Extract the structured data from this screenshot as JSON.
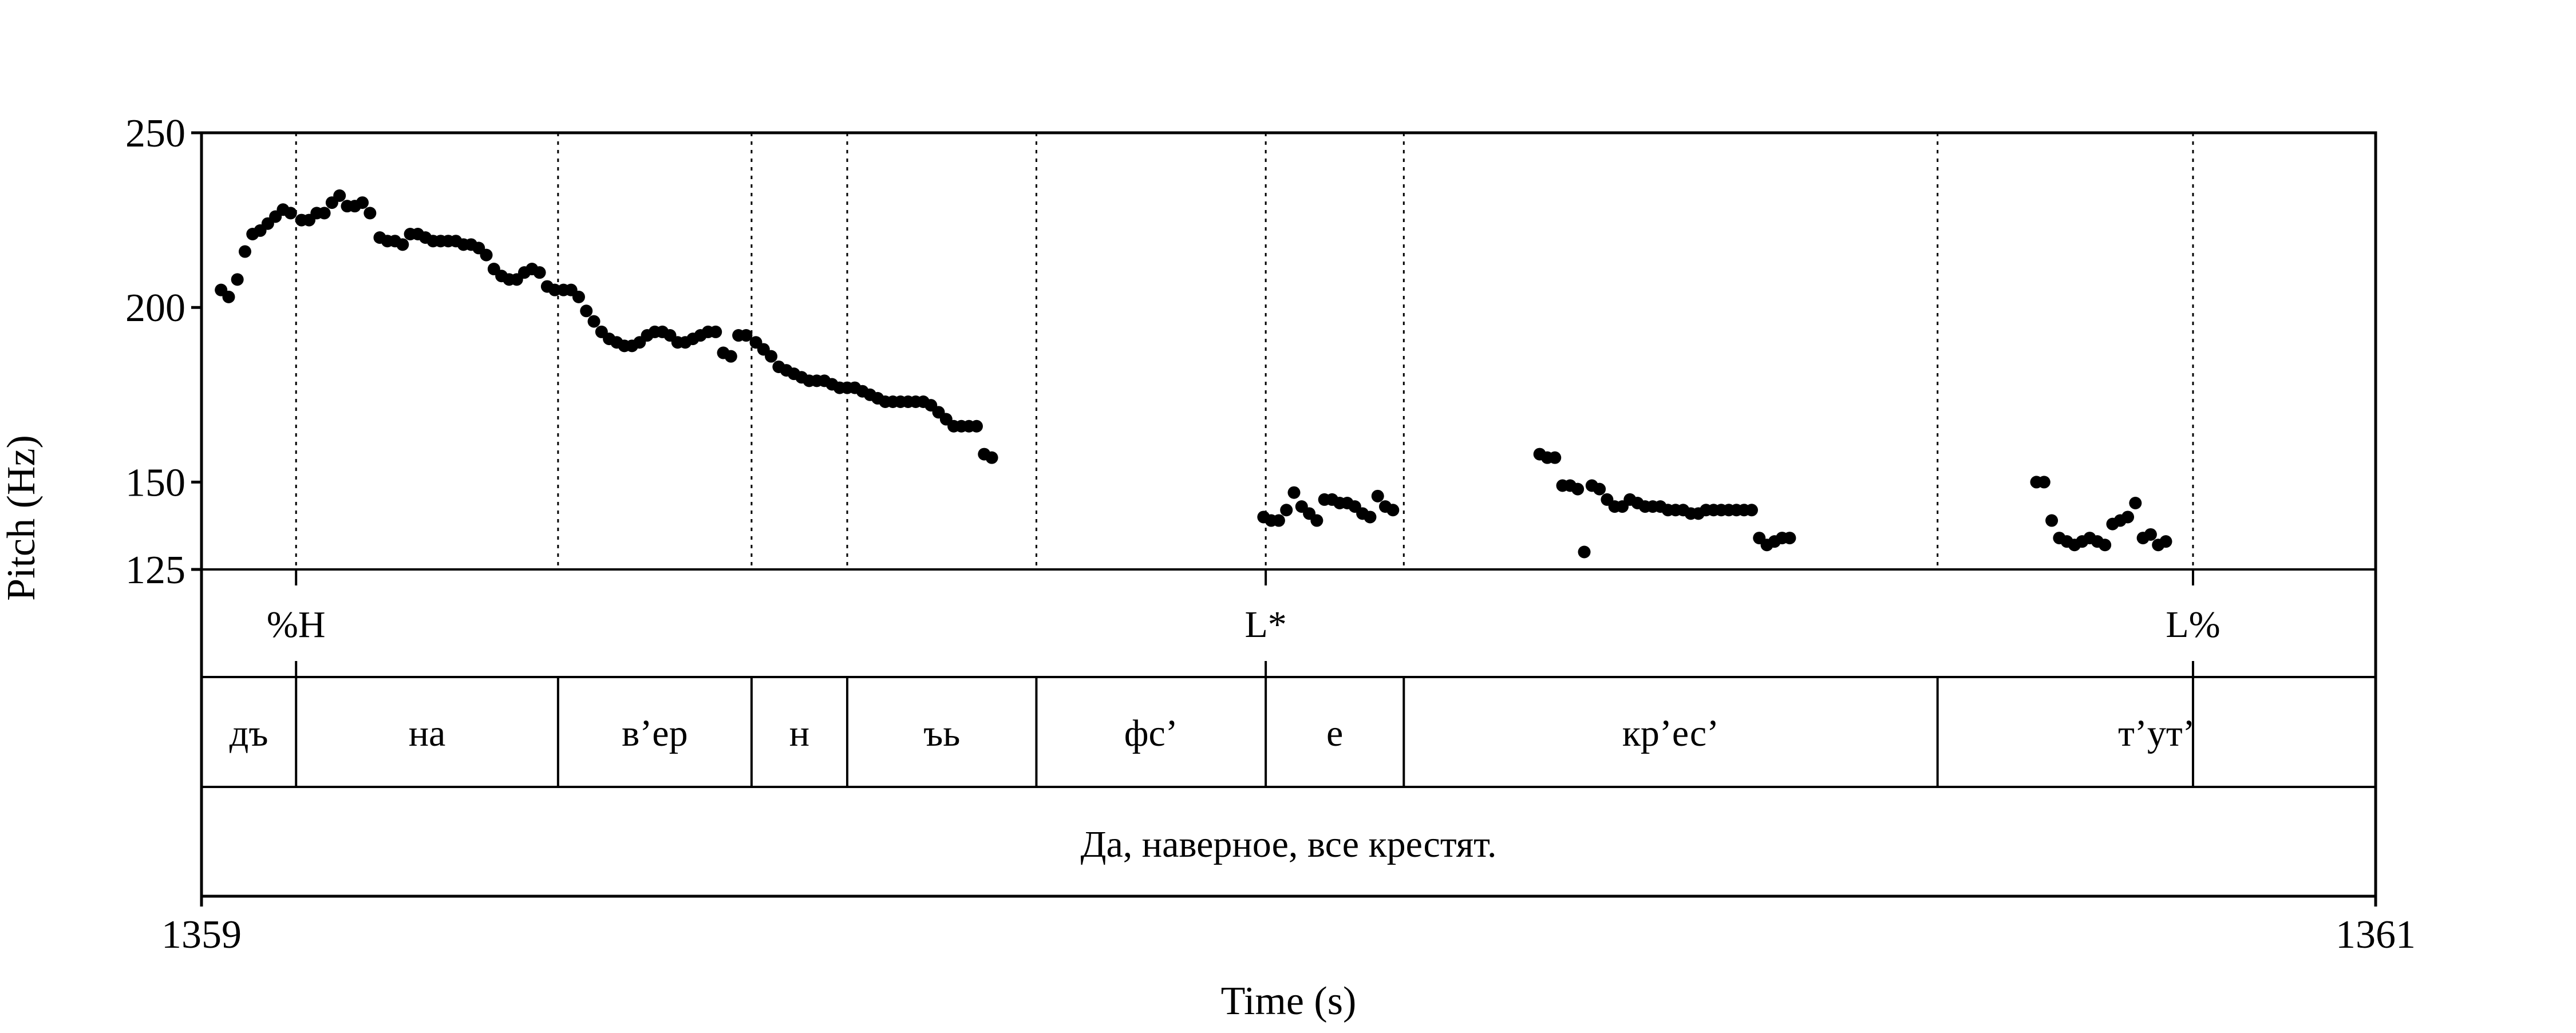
{
  "chart_data": {
    "type": "scatter",
    "xlabel": "Time (s)",
    "ylabel": "Pitch (Hz)",
    "xlim": [
      1359,
      1361
    ],
    "ylim": [
      125,
      250
    ],
    "x_ticks": [
      {
        "value": 1359,
        "label": "1359"
      },
      {
        "value": 1361,
        "label": "1361"
      }
    ],
    "y_ticks": [
      {
        "value": 250,
        "label": "250"
      },
      {
        "value": 200,
        "label": "200"
      },
      {
        "value": 150,
        "label": "150"
      },
      {
        "value": 125,
        "label": "125"
      }
    ],
    "grid": false,
    "legend": "none",
    "marker_color": "#000000",
    "boundaries_s": [
      1359.087,
      1359.328,
      1359.506,
      1359.594,
      1359.768,
      1359.979,
      1360.106,
      1360.597,
      1360.832
    ],
    "tones": [
      {
        "label": "%H",
        "time": 1359.087
      },
      {
        "label": "L*",
        "time": 1359.979
      },
      {
        "label": "L%",
        "time": 1360.832
      }
    ],
    "syllables": [
      {
        "label": "дъ",
        "start": 1359.0,
        "end": 1359.087
      },
      {
        "label": "на",
        "start": 1359.087,
        "end": 1359.328
      },
      {
        "label": "в’ер",
        "start": 1359.328,
        "end": 1359.506
      },
      {
        "label": "н",
        "start": 1359.506,
        "end": 1359.594
      },
      {
        "label": "ъь",
        "start": 1359.594,
        "end": 1359.768
      },
      {
        "label": "фс’",
        "start": 1359.768,
        "end": 1359.979
      },
      {
        "label": "е",
        "start": 1359.979,
        "end": 1360.106
      },
      {
        "label": "кр’ес’",
        "start": 1360.106,
        "end": 1360.597
      },
      {
        "label": "т’ут’",
        "start": 1360.597,
        "end": 1361.0
      }
    ],
    "sentence": "Да, наверное, все крестят.",
    "pitch_points": [
      {
        "x": 1359.018,
        "y": 205
      },
      {
        "x": 1359.025,
        "y": 203
      },
      {
        "x": 1359.033,
        "y": 208
      },
      {
        "x": 1359.04,
        "y": 216
      },
      {
        "x": 1359.047,
        "y": 221
      },
      {
        "x": 1359.054,
        "y": 222
      },
      {
        "x": 1359.061,
        "y": 224
      },
      {
        "x": 1359.068,
        "y": 226
      },
      {
        "x": 1359.075,
        "y": 228
      },
      {
        "x": 1359.082,
        "y": 227
      },
      {
        "x": 1359.092,
        "y": 225
      },
      {
        "x": 1359.099,
        "y": 225
      },
      {
        "x": 1359.106,
        "y": 227
      },
      {
        "x": 1359.113,
        "y": 227
      },
      {
        "x": 1359.12,
        "y": 230
      },
      {
        "x": 1359.127,
        "y": 232
      },
      {
        "x": 1359.134,
        "y": 229
      },
      {
        "x": 1359.141,
        "y": 229
      },
      {
        "x": 1359.148,
        "y": 230
      },
      {
        "x": 1359.155,
        "y": 227
      },
      {
        "x": 1359.164,
        "y": 220
      },
      {
        "x": 1359.171,
        "y": 219
      },
      {
        "x": 1359.178,
        "y": 219
      },
      {
        "x": 1359.185,
        "y": 218
      },
      {
        "x": 1359.192,
        "y": 221
      },
      {
        "x": 1359.199,
        "y": 221
      },
      {
        "x": 1359.206,
        "y": 220
      },
      {
        "x": 1359.213,
        "y": 219
      },
      {
        "x": 1359.22,
        "y": 219
      },
      {
        "x": 1359.227,
        "y": 219
      },
      {
        "x": 1359.234,
        "y": 219
      },
      {
        "x": 1359.241,
        "y": 218
      },
      {
        "x": 1359.248,
        "y": 218
      },
      {
        "x": 1359.255,
        "y": 217
      },
      {
        "x": 1359.262,
        "y": 215
      },
      {
        "x": 1359.269,
        "y": 211
      },
      {
        "x": 1359.276,
        "y": 209
      },
      {
        "x": 1359.283,
        "y": 208
      },
      {
        "x": 1359.29,
        "y": 208
      },
      {
        "x": 1359.297,
        "y": 210
      },
      {
        "x": 1359.304,
        "y": 211
      },
      {
        "x": 1359.311,
        "y": 210
      },
      {
        "x": 1359.318,
        "y": 206
      },
      {
        "x": 1359.325,
        "y": 205
      },
      {
        "x": 1359.333,
        "y": 205
      },
      {
        "x": 1359.34,
        "y": 205
      },
      {
        "x": 1359.347,
        "y": 203
      },
      {
        "x": 1359.354,
        "y": 199
      },
      {
        "x": 1359.361,
        "y": 196
      },
      {
        "x": 1359.368,
        "y": 193
      },
      {
        "x": 1359.375,
        "y": 191
      },
      {
        "x": 1359.382,
        "y": 190
      },
      {
        "x": 1359.389,
        "y": 189
      },
      {
        "x": 1359.396,
        "y": 189
      },
      {
        "x": 1359.403,
        "y": 190
      },
      {
        "x": 1359.41,
        "y": 192
      },
      {
        "x": 1359.417,
        "y": 193
      },
      {
        "x": 1359.424,
        "y": 193
      },
      {
        "x": 1359.431,
        "y": 192
      },
      {
        "x": 1359.438,
        "y": 190
      },
      {
        "x": 1359.445,
        "y": 190
      },
      {
        "x": 1359.452,
        "y": 191
      },
      {
        "x": 1359.459,
        "y": 192
      },
      {
        "x": 1359.466,
        "y": 193
      },
      {
        "x": 1359.473,
        "y": 193
      },
      {
        "x": 1359.48,
        "y": 187
      },
      {
        "x": 1359.487,
        "y": 186
      },
      {
        "x": 1359.494,
        "y": 192
      },
      {
        "x": 1359.501,
        "y": 192
      },
      {
        "x": 1359.51,
        "y": 190
      },
      {
        "x": 1359.517,
        "y": 188
      },
      {
        "x": 1359.524,
        "y": 186
      },
      {
        "x": 1359.531,
        "y": 183
      },
      {
        "x": 1359.538,
        "y": 182
      },
      {
        "x": 1359.545,
        "y": 181
      },
      {
        "x": 1359.552,
        "y": 180
      },
      {
        "x": 1359.559,
        "y": 179
      },
      {
        "x": 1359.566,
        "y": 179
      },
      {
        "x": 1359.573,
        "y": 179
      },
      {
        "x": 1359.58,
        "y": 178
      },
      {
        "x": 1359.587,
        "y": 177
      },
      {
        "x": 1359.594,
        "y": 177
      },
      {
        "x": 1359.601,
        "y": 177
      },
      {
        "x": 1359.608,
        "y": 176
      },
      {
        "x": 1359.615,
        "y": 175
      },
      {
        "x": 1359.622,
        "y": 174
      },
      {
        "x": 1359.629,
        "y": 173
      },
      {
        "x": 1359.636,
        "y": 173
      },
      {
        "x": 1359.643,
        "y": 173
      },
      {
        "x": 1359.65,
        "y": 173
      },
      {
        "x": 1359.657,
        "y": 173
      },
      {
        "x": 1359.664,
        "y": 173
      },
      {
        "x": 1359.671,
        "y": 172
      },
      {
        "x": 1359.678,
        "y": 170
      },
      {
        "x": 1359.685,
        "y": 168
      },
      {
        "x": 1359.692,
        "y": 166
      },
      {
        "x": 1359.699,
        "y": 166
      },
      {
        "x": 1359.706,
        "y": 166
      },
      {
        "x": 1359.713,
        "y": 166
      },
      {
        "x": 1359.72,
        "y": 158
      },
      {
        "x": 1359.727,
        "y": 157
      },
      {
        "x": 1359.977,
        "y": 140
      },
      {
        "x": 1359.984,
        "y": 139
      },
      {
        "x": 1359.991,
        "y": 139
      },
      {
        "x": 1359.998,
        "y": 142
      },
      {
        "x": 1360.005,
        "y": 147
      },
      {
        "x": 1360.012,
        "y": 143
      },
      {
        "x": 1360.019,
        "y": 141
      },
      {
        "x": 1360.026,
        "y": 139
      },
      {
        "x": 1360.033,
        "y": 145
      },
      {
        "x": 1360.04,
        "y": 145
      },
      {
        "x": 1360.047,
        "y": 144
      },
      {
        "x": 1360.054,
        "y": 144
      },
      {
        "x": 1360.061,
        "y": 143
      },
      {
        "x": 1360.068,
        "y": 141
      },
      {
        "x": 1360.075,
        "y": 140
      },
      {
        "x": 1360.082,
        "y": 146
      },
      {
        "x": 1360.089,
        "y": 143
      },
      {
        "x": 1360.096,
        "y": 142
      },
      {
        "x": 1360.231,
        "y": 158
      },
      {
        "x": 1360.238,
        "y": 157
      },
      {
        "x": 1360.245,
        "y": 157
      },
      {
        "x": 1360.252,
        "y": 149
      },
      {
        "x": 1360.259,
        "y": 149
      },
      {
        "x": 1360.266,
        "y": 148
      },
      {
        "x": 1360.272,
        "y": 130
      },
      {
        "x": 1360.279,
        "y": 149
      },
      {
        "x": 1360.286,
        "y": 148
      },
      {
        "x": 1360.293,
        "y": 145
      },
      {
        "x": 1360.3,
        "y": 143
      },
      {
        "x": 1360.307,
        "y": 143
      },
      {
        "x": 1360.314,
        "y": 145
      },
      {
        "x": 1360.321,
        "y": 144
      },
      {
        "x": 1360.328,
        "y": 143
      },
      {
        "x": 1360.335,
        "y": 143
      },
      {
        "x": 1360.342,
        "y": 143
      },
      {
        "x": 1360.349,
        "y": 142
      },
      {
        "x": 1360.356,
        "y": 142
      },
      {
        "x": 1360.363,
        "y": 142
      },
      {
        "x": 1360.37,
        "y": 141
      },
      {
        "x": 1360.377,
        "y": 141
      },
      {
        "x": 1360.384,
        "y": 142
      },
      {
        "x": 1360.391,
        "y": 142
      },
      {
        "x": 1360.398,
        "y": 142
      },
      {
        "x": 1360.405,
        "y": 142
      },
      {
        "x": 1360.412,
        "y": 142
      },
      {
        "x": 1360.419,
        "y": 142
      },
      {
        "x": 1360.426,
        "y": 142
      },
      {
        "x": 1360.433,
        "y": 134
      },
      {
        "x": 1360.44,
        "y": 132
      },
      {
        "x": 1360.447,
        "y": 133
      },
      {
        "x": 1360.454,
        "y": 134
      },
      {
        "x": 1360.461,
        "y": 134
      },
      {
        "x": 1360.688,
        "y": 150
      },
      {
        "x": 1360.695,
        "y": 150
      },
      {
        "x": 1360.702,
        "y": 139
      },
      {
        "x": 1360.709,
        "y": 134
      },
      {
        "x": 1360.716,
        "y": 133
      },
      {
        "x": 1360.723,
        "y": 132
      },
      {
        "x": 1360.73,
        "y": 133
      },
      {
        "x": 1360.737,
        "y": 134
      },
      {
        "x": 1360.744,
        "y": 133
      },
      {
        "x": 1360.751,
        "y": 132
      },
      {
        "x": 1360.758,
        "y": 138
      },
      {
        "x": 1360.765,
        "y": 139
      },
      {
        "x": 1360.772,
        "y": 140
      },
      {
        "x": 1360.779,
        "y": 144
      },
      {
        "x": 1360.786,
        "y": 134
      },
      {
        "x": 1360.793,
        "y": 135
      },
      {
        "x": 1360.8,
        "y": 132
      },
      {
        "x": 1360.807,
        "y": 133
      }
    ]
  }
}
